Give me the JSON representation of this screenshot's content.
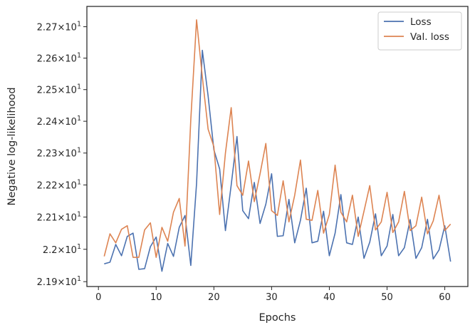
{
  "chart_data": {
    "type": "line",
    "title": "",
    "xlabel": "Epochs",
    "ylabel": "Negative log-likelihood",
    "xlim": [
      -2.0,
      64.0
    ],
    "ylim": [
      21.885,
      22.765
    ],
    "y_scale": "log",
    "grid": false,
    "legend_position": "top-right",
    "x_ticks": [
      0,
      10,
      20,
      30,
      40,
      50,
      60
    ],
    "y_ticks": [
      {
        "value": 21.9,
        "base": "2.19",
        "exp": "1"
      },
      {
        "value": 22.0,
        "base": "2.2",
        "exp": "1"
      },
      {
        "value": 22.1,
        "base": "2.21",
        "exp": "1"
      },
      {
        "value": 22.2,
        "base": "2.22",
        "exp": "1"
      },
      {
        "value": 22.3,
        "base": "2.23",
        "exp": "1"
      },
      {
        "value": 22.4,
        "base": "2.24",
        "exp": "1"
      },
      {
        "value": 22.5,
        "base": "2.25",
        "exp": "1"
      },
      {
        "value": 22.6,
        "base": "2.26",
        "exp": "1"
      },
      {
        "value": 22.7,
        "base": "2.27",
        "exp": "1"
      }
    ],
    "series": [
      {
        "name": "Loss",
        "color": "#4c72b0",
        "x": [
          1,
          2,
          3,
          4,
          5,
          6,
          7,
          8,
          9,
          10,
          11,
          12,
          13,
          14,
          15,
          16,
          17,
          18,
          19,
          20,
          21,
          22,
          23,
          24,
          25,
          26,
          27,
          28,
          29,
          30,
          31,
          32,
          33,
          34,
          35,
          36,
          37,
          38,
          39,
          40,
          41,
          42,
          43,
          44,
          45,
          46,
          47,
          48,
          49,
          50,
          51,
          52,
          53,
          54,
          55,
          56,
          57,
          58,
          59,
          60,
          61
        ],
        "values": [
          21.955,
          21.96,
          22.015,
          21.98,
          22.04,
          22.05,
          21.938,
          21.94,
          22.008,
          22.038,
          21.932,
          22.018,
          21.978,
          22.068,
          22.105,
          21.95,
          22.205,
          22.625,
          22.48,
          22.31,
          22.25,
          22.058,
          22.2,
          22.352,
          22.12,
          22.095,
          22.208,
          22.08,
          22.14,
          22.235,
          22.04,
          22.042,
          22.155,
          22.02,
          22.09,
          22.19,
          22.02,
          22.025,
          22.118,
          21.98,
          22.05,
          22.17,
          22.02,
          22.015,
          22.1,
          21.972,
          22.022,
          22.11,
          21.98,
          22.01,
          22.108,
          21.98,
          22.005,
          22.092,
          21.972,
          22.005,
          22.093,
          21.97,
          21.998,
          22.073,
          21.962
        ]
      },
      {
        "name": "Val. loss",
        "color": "#dd8452",
        "x": [
          1,
          2,
          3,
          4,
          5,
          6,
          7,
          8,
          9,
          10,
          11,
          12,
          13,
          14,
          15,
          16,
          17,
          18,
          19,
          20,
          21,
          22,
          23,
          24,
          25,
          26,
          27,
          28,
          29,
          30,
          31,
          32,
          33,
          34,
          35,
          36,
          37,
          38,
          39,
          40,
          41,
          42,
          43,
          44,
          45,
          46,
          47,
          48,
          49,
          50,
          51,
          52,
          53,
          54,
          55,
          56,
          57,
          58,
          59,
          60,
          61
        ],
        "values": [
          21.978,
          22.048,
          22.02,
          22.062,
          22.073,
          21.975,
          21.975,
          22.06,
          22.082,
          21.975,
          22.068,
          22.025,
          22.115,
          22.158,
          22.01,
          22.405,
          22.722,
          22.54,
          22.375,
          22.32,
          22.108,
          22.3,
          22.443,
          22.198,
          22.168,
          22.275,
          22.148,
          22.235,
          22.33,
          22.12,
          22.105,
          22.213,
          22.085,
          22.168,
          22.278,
          22.093,
          22.09,
          22.183,
          22.05,
          22.108,
          22.262,
          22.115,
          22.085,
          22.168,
          22.04,
          22.118,
          22.198,
          22.06,
          22.085,
          22.177,
          22.052,
          22.085,
          22.18,
          22.058,
          22.073,
          22.162,
          22.048,
          22.088,
          22.168,
          22.058,
          22.078
        ]
      }
    ]
  }
}
